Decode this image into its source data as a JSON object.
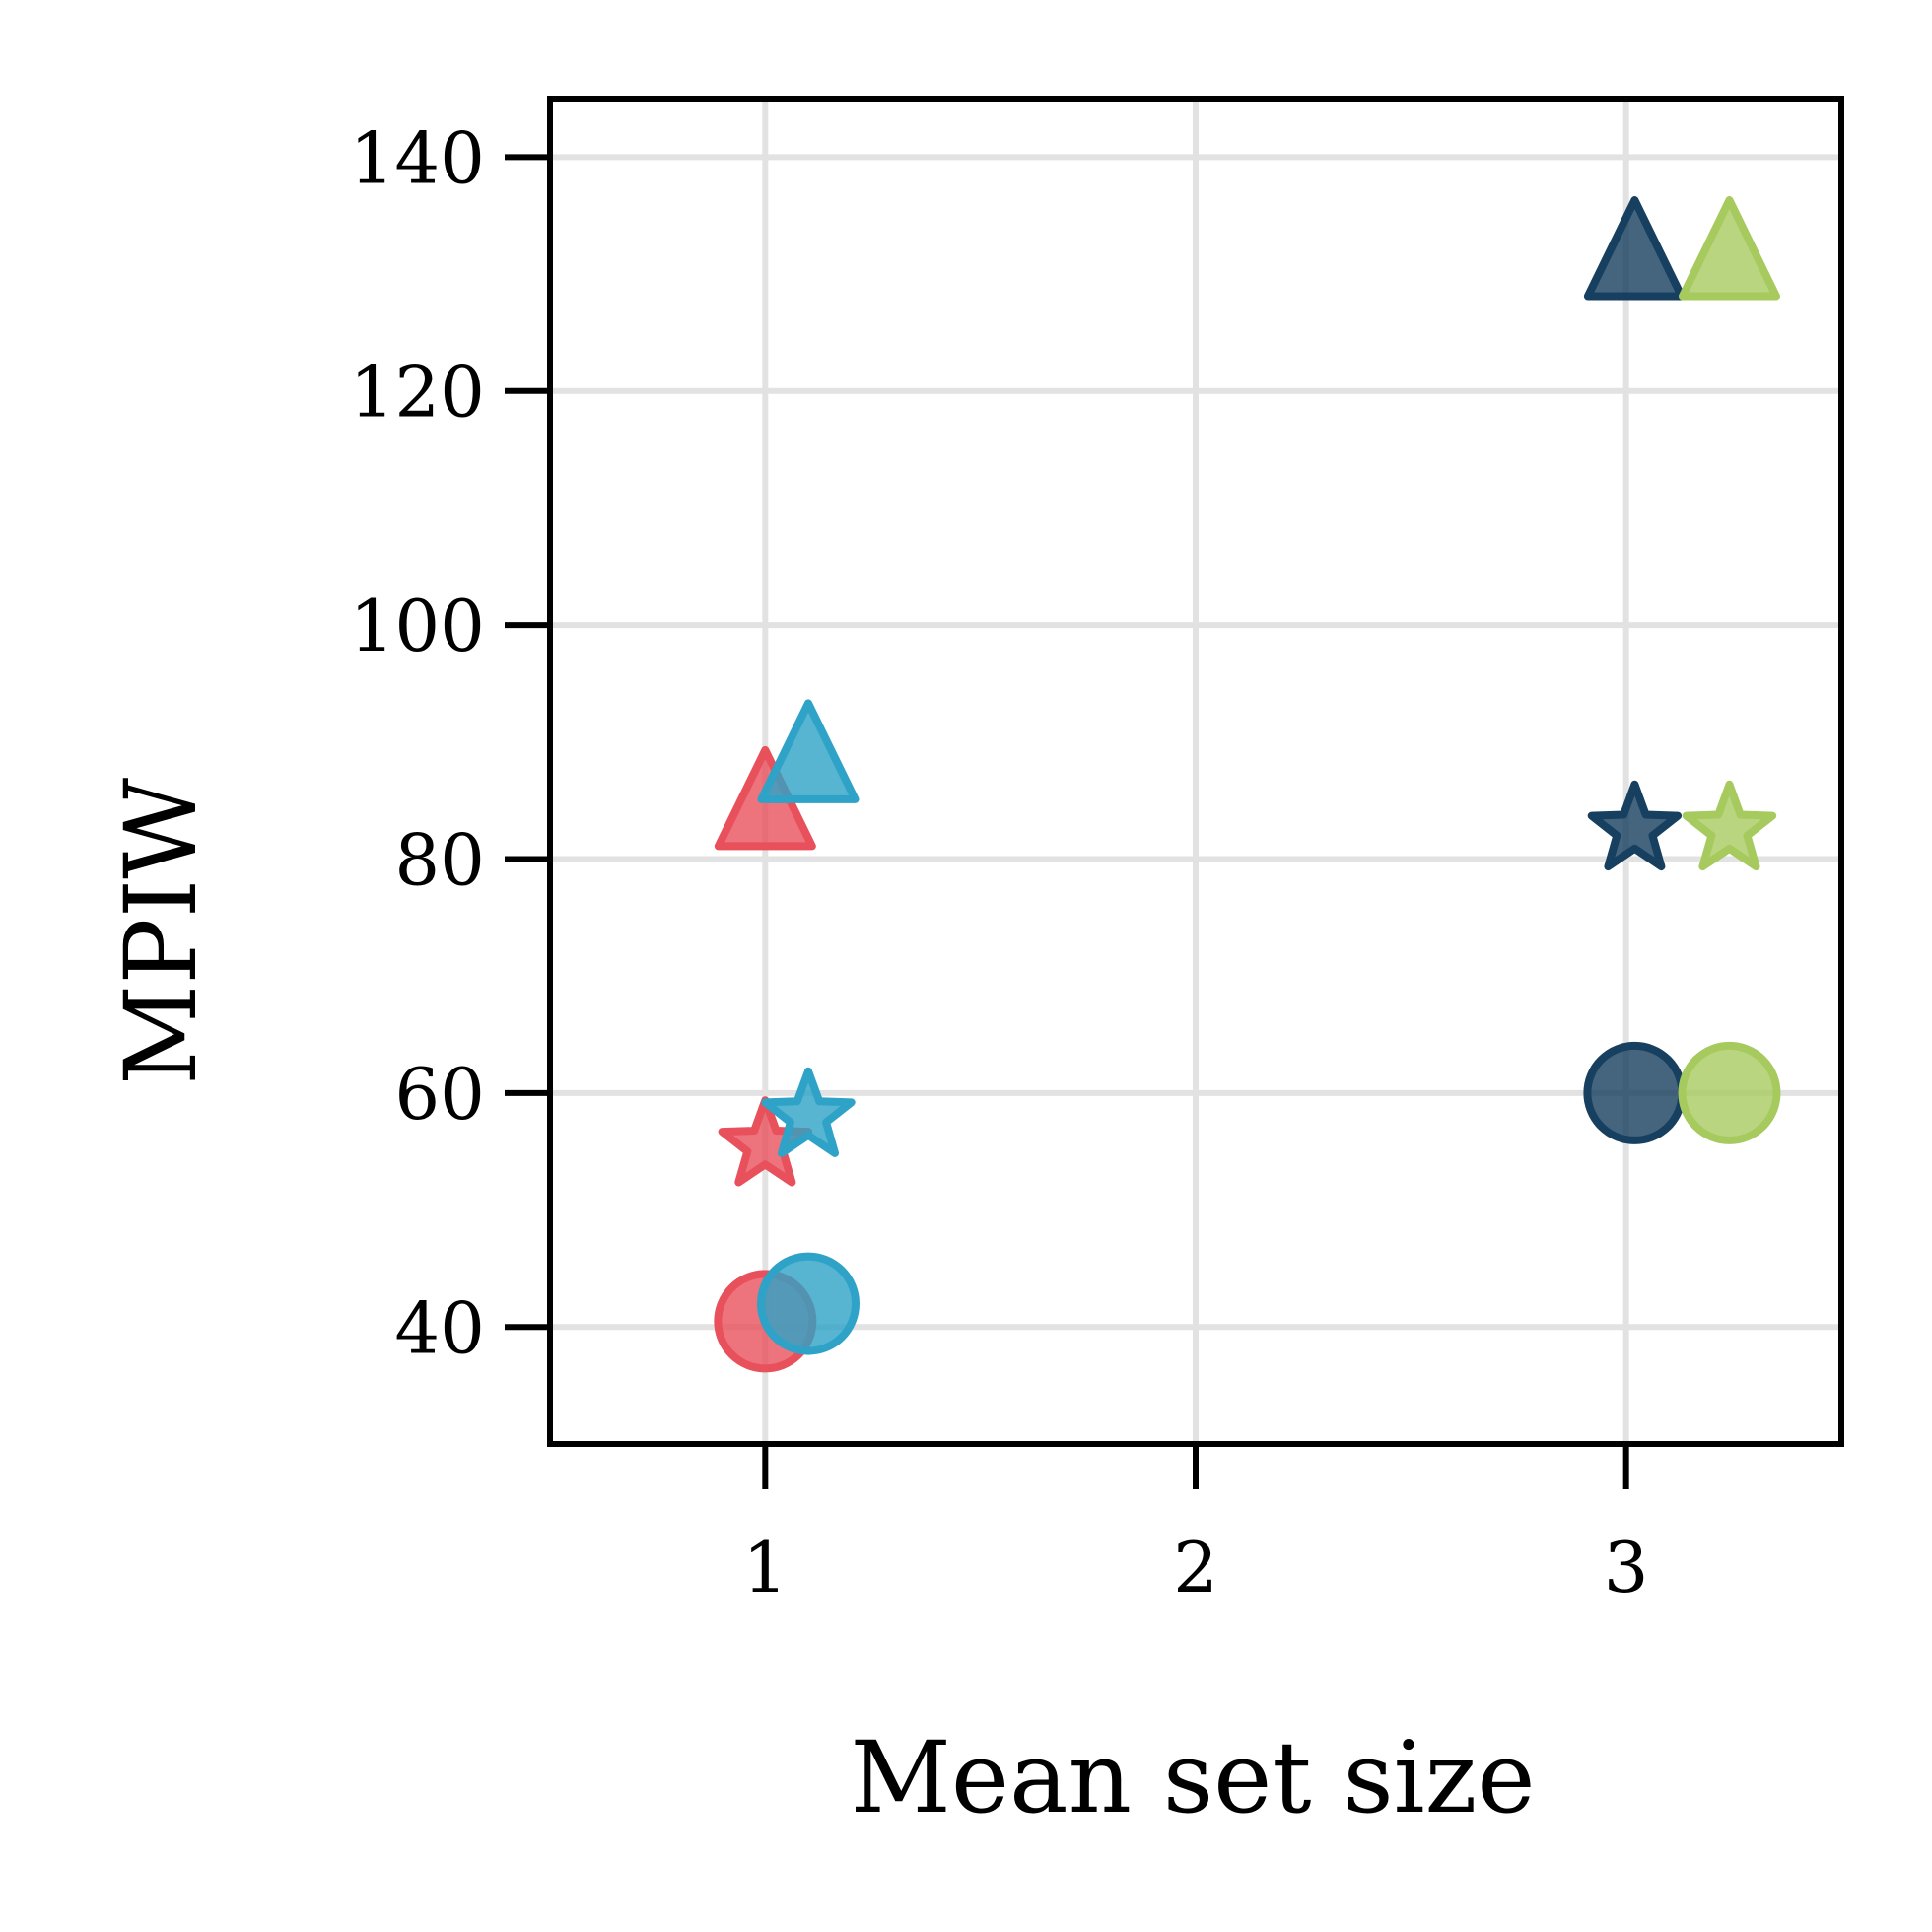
{
  "chart_data": {
    "type": "scatter",
    "title": "",
    "xlabel": "Mean set size",
    "ylabel": "MPIW",
    "xlim": [
      0.5,
      3.5
    ],
    "ylim": [
      30,
      145
    ],
    "xticks": [
      "1",
      "2",
      "3"
    ],
    "yticks": [
      "40",
      "60",
      "80",
      "100",
      "120",
      "140"
    ],
    "grid": true,
    "legend": "none",
    "series": [
      {
        "color": "#e8505b",
        "points": [
          {
            "x": 1.0,
            "y": 40.5,
            "marker": "circle"
          },
          {
            "x": 1.0,
            "y": 55.5,
            "marker": "star"
          },
          {
            "x": 1.0,
            "y": 83.0,
            "marker": "triangle"
          }
        ]
      },
      {
        "color": "#2ea3c7",
        "points": [
          {
            "x": 1.1,
            "y": 42.0,
            "marker": "circle"
          },
          {
            "x": 1.1,
            "y": 58.0,
            "marker": "star"
          },
          {
            "x": 1.1,
            "y": 87.0,
            "marker": "triangle"
          }
        ]
      },
      {
        "color": "#173f5f",
        "points": [
          {
            "x": 3.02,
            "y": 60.0,
            "marker": "circle"
          },
          {
            "x": 3.02,
            "y": 82.5,
            "marker": "star"
          },
          {
            "x": 3.02,
            "y": 130.0,
            "marker": "triangle"
          }
        ]
      },
      {
        "color": "#a7ca5f",
        "points": [
          {
            "x": 3.24,
            "y": 60.0,
            "marker": "circle"
          },
          {
            "x": 3.24,
            "y": 82.5,
            "marker": "star"
          },
          {
            "x": 3.24,
            "y": 130.0,
            "marker": "triangle"
          }
        ]
      }
    ]
  }
}
